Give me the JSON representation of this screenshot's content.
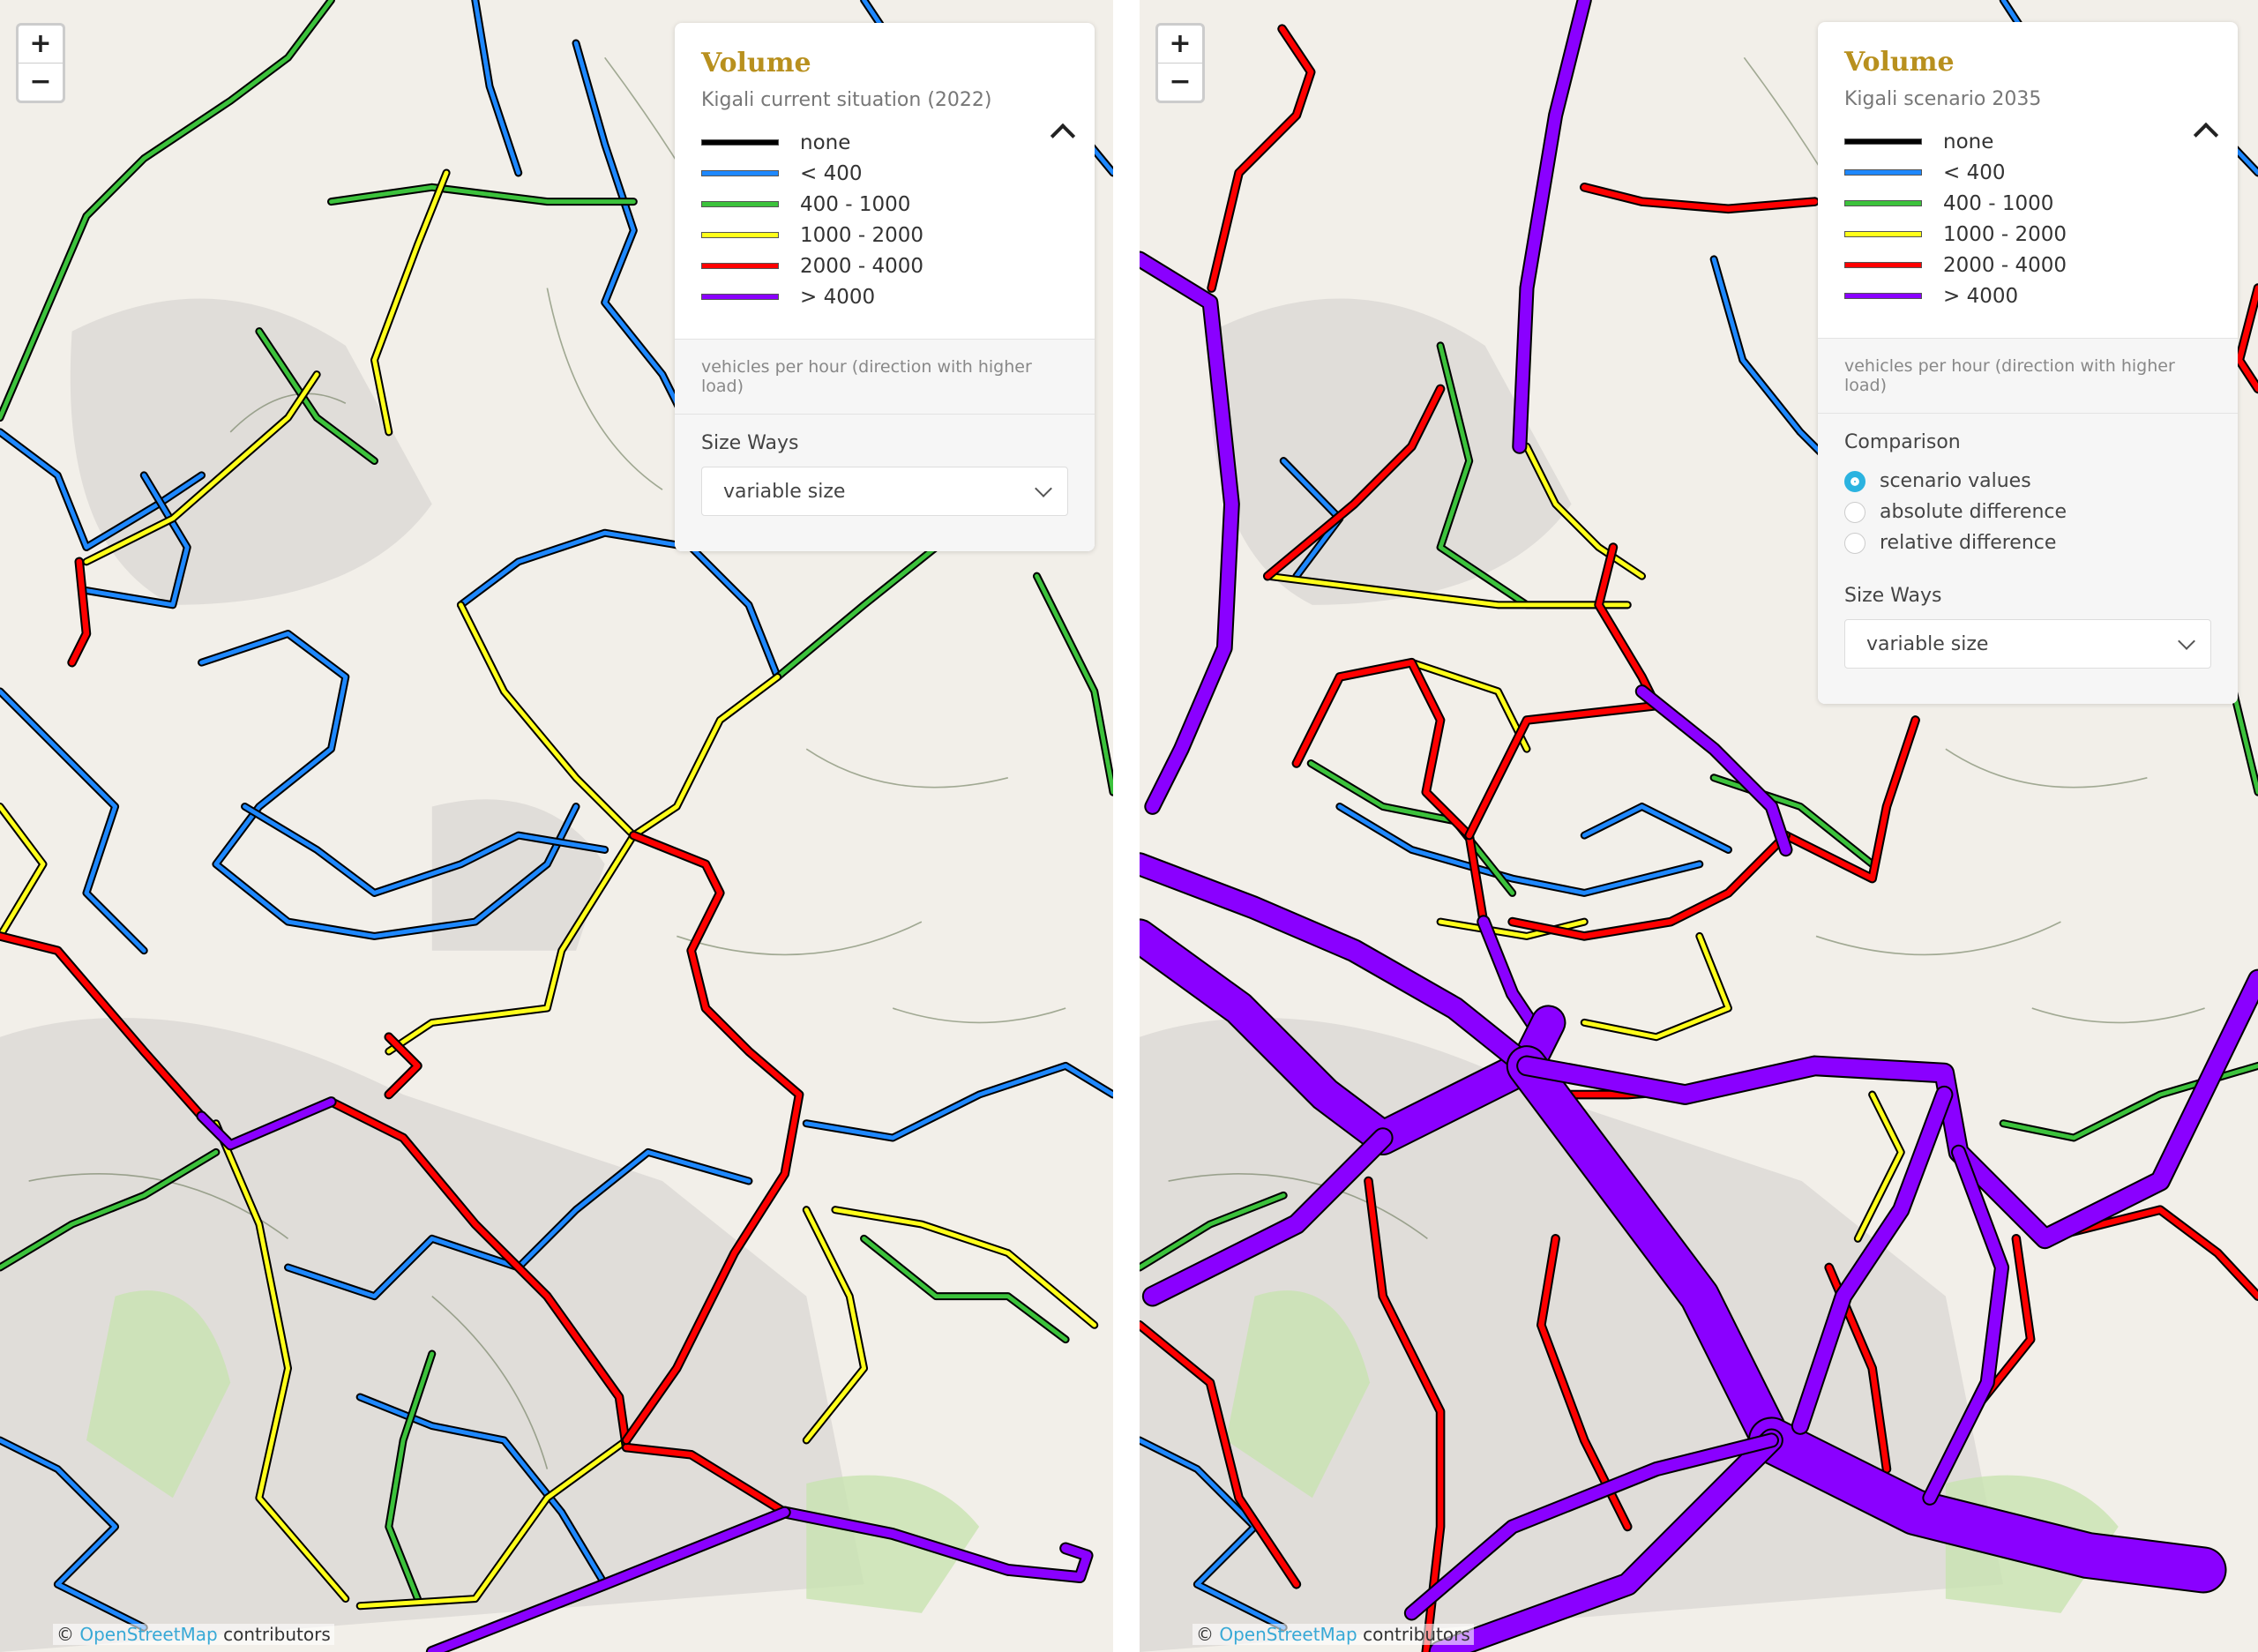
{
  "legend_colors": {
    "none": "#000000",
    "lt400": "#1e88ff",
    "400_1000": "#3cc23c",
    "1000_2000": "#ffff1a",
    "2000_4000": "#ff0000",
    "gt4000": "#8a00ff"
  },
  "zoom": {
    "in": "+",
    "out": "−"
  },
  "attribution": {
    "symbol": "©",
    "link": "OpenStreetMap",
    "suffix": " contributors"
  },
  "left": {
    "title": "Volume",
    "subtitle": "Kigali current situation (2022)",
    "legend": [
      {
        "label": "none",
        "color": "#000000"
      },
      {
        "label": "< 400",
        "color": "#1e88ff"
      },
      {
        "label": "400 - 1000",
        "color": "#3cc23c"
      },
      {
        "label": "1000 - 2000",
        "color": "#ffff1a"
      },
      {
        "label": "2000 - 4000",
        "color": "#ff0000"
      },
      {
        "label": "> 4000",
        "color": "#8a00ff"
      }
    ],
    "unit": "vehicles per hour (direction with higher load)",
    "size_ways_label": "Size Ways",
    "size_ways_value": "variable size"
  },
  "right": {
    "title": "Volume",
    "subtitle": "Kigali scenario 2035",
    "legend": [
      {
        "label": "none",
        "color": "#000000"
      },
      {
        "label": "< 400",
        "color": "#1e88ff"
      },
      {
        "label": "400 - 1000",
        "color": "#3cc23c"
      },
      {
        "label": "1000 - 2000",
        "color": "#ffff1a"
      },
      {
        "label": "2000 - 4000",
        "color": "#ff0000"
      },
      {
        "label": "> 4000",
        "color": "#8a00ff"
      }
    ],
    "unit": "vehicles per hour (direction with higher load)",
    "comparison_label": "Comparison",
    "comparison_options": [
      {
        "label": "scenario values",
        "selected": true
      },
      {
        "label": "absolute difference",
        "selected": false
      },
      {
        "label": "relative difference",
        "selected": false
      }
    ],
    "size_ways_label": "Size Ways",
    "size_ways_value": "variable size"
  }
}
